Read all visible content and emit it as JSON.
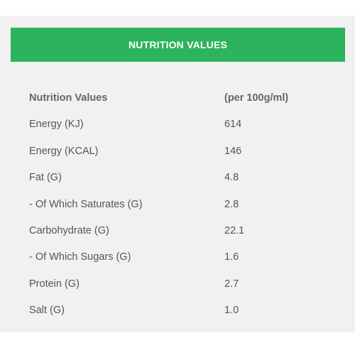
{
  "header": {
    "title": "NUTRITION VALUES"
  },
  "table": {
    "columns": {
      "label": "Nutrition Values",
      "value": "(per 100g/ml)"
    },
    "rows": [
      {
        "label": "Energy (KJ)",
        "value": "614"
      },
      {
        "label": "Energy (KCAL)",
        "value": "146"
      },
      {
        "label": "Fat (G)",
        "value": "4.8"
      },
      {
        "label": "- Of Which Saturates (G)",
        "value": "2.8"
      },
      {
        "label": "Carbohydrate (G)",
        "value": "22.1"
      },
      {
        "label": "- Of Which Sugars (G)",
        "value": "1.6"
      },
      {
        "label": "Protein (G)",
        "value": "2.7"
      },
      {
        "label": "Salt (G)",
        "value": "1.0"
      }
    ]
  },
  "colors": {
    "header_bg": "#2db35d",
    "panel_bg": "#f1f1f1",
    "text": "#555555"
  }
}
